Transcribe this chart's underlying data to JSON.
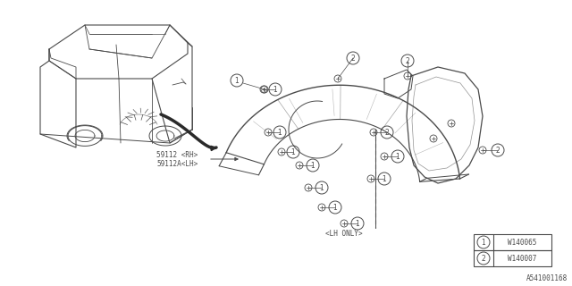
{
  "bg_color": "#ffffff",
  "line_color": "#4a4a4a",
  "text_color": "#4a4a4a",
  "diagram_id": "A541001168",
  "part_labels": [
    {
      "num": "1",
      "part": "W140065"
    },
    {
      "num": "2",
      "part": "W140007"
    }
  ],
  "part_num_1": "59112 <RH>",
  "part_num_2": "59112A<LH>",
  "lh_only": "<LH ONLY>"
}
